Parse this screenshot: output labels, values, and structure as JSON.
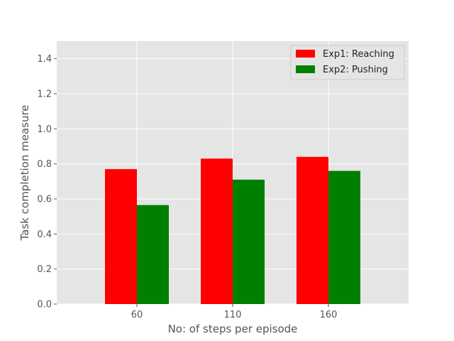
{
  "chart_data": {
    "type": "bar",
    "categories": [
      "60",
      "110",
      "160"
    ],
    "series": [
      {
        "name": "Exp1: Reaching",
        "values": [
          0.77,
          0.83,
          0.84
        ],
        "color": "#ff0000"
      },
      {
        "name": "Exp2: Pushing",
        "values": [
          0.565,
          0.71,
          0.76
        ],
        "color": "#008000"
      }
    ],
    "xlabel": "No: of steps per episode",
    "ylabel": "Task completion measure",
    "ylim": [
      0,
      1.5
    ],
    "yticks": [
      "0.0",
      "0.2",
      "0.4",
      "0.6",
      "0.8",
      "1.0",
      "1.2",
      "1.4"
    ],
    "grid": true,
    "legend_position": "top-right",
    "background_color": "#e5e5e5"
  }
}
